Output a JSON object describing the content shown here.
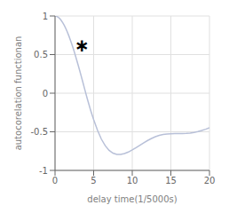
{
  "chart_data": {
    "type": "line",
    "title": "",
    "xlabel": "delay time(1/5000s)",
    "ylabel": "autocorelation functionan",
    "x": [
      0.0,
      0.2,
      0.4,
      0.6,
      0.8,
      1.0,
      1.2,
      1.4,
      1.6,
      1.8,
      2.0,
      2.2,
      2.4,
      2.6,
      2.8,
      3.0,
      3.2,
      3.4,
      3.6,
      3.8,
      4.0,
      4.2,
      4.4,
      4.6,
      4.8,
      5.0,
      5.5,
      6.0,
      6.5,
      7.0,
      7.5,
      8.0,
      8.5,
      9.0,
      9.5,
      10.0,
      10.5,
      11.0,
      11.5,
      12.0,
      12.5,
      13.0,
      13.5,
      14.0,
      14.5,
      15.0,
      15.5,
      16.0,
      16.5,
      17.0,
      17.5,
      18.0,
      18.5,
      19.0,
      19.5,
      20.0
    ],
    "values": [
      1.0,
      0.996,
      0.985,
      0.967,
      0.943,
      0.913,
      0.877,
      0.836,
      0.79,
      0.74,
      0.685,
      0.627,
      0.565,
      0.5,
      0.432,
      0.362,
      0.29,
      0.217,
      0.143,
      0.068,
      -0.007,
      -0.08,
      -0.15,
      -0.218,
      -0.282,
      -0.343,
      -0.48,
      -0.595,
      -0.68,
      -0.74,
      -0.776,
      -0.793,
      -0.794,
      -0.782,
      -0.762,
      -0.735,
      -0.705,
      -0.673,
      -0.641,
      -0.612,
      -0.586,
      -0.564,
      -0.547,
      -0.535,
      -0.528,
      -0.525,
      -0.524,
      -0.524,
      -0.523,
      -0.521,
      -0.516,
      -0.508,
      -0.497,
      -0.483,
      -0.467,
      -0.449
    ],
    "color": "#b8c0d8",
    "xlim": [
      0,
      20
    ],
    "ylim": [
      -1,
      1
    ],
    "xticks": [
      0,
      5,
      10,
      15,
      20
    ],
    "yticks": [
      -1,
      -0.5,
      0,
      0.5,
      1
    ],
    "grid": true,
    "annotations": [
      {
        "text": "∗",
        "x": 3.5,
        "y": 0.62
      }
    ]
  }
}
